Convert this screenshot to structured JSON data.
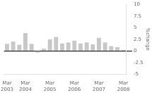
{
  "chart_data": {
    "type": "bar",
    "ylabel": "%change",
    "categories": [
      "Mar\n2003",
      null,
      null,
      "Mar\n2004",
      null,
      null,
      null,
      "Mar\n2005",
      null,
      null,
      null,
      "Mar\n2006",
      null,
      null,
      null,
      "Mar\n2007",
      null,
      null,
      null,
      "Mar\n2008"
    ],
    "values": [
      1.5,
      2.0,
      1.3,
      3.8,
      1.5,
      -0.4,
      0.5,
      2.5,
      3.0,
      1.6,
      1.8,
      2.2,
      1.6,
      1.8,
      1.4,
      2.8,
      1.8,
      1.0,
      0.8,
      0.2
    ],
    "color": "#c8c8c8",
    "ylim": [
      -5.0,
      10.0
    ],
    "yticks": [
      10.0,
      7.5,
      5.0,
      2.5,
      0,
      -2.5,
      -5.0
    ],
    "grid": false,
    "legend": false
  }
}
